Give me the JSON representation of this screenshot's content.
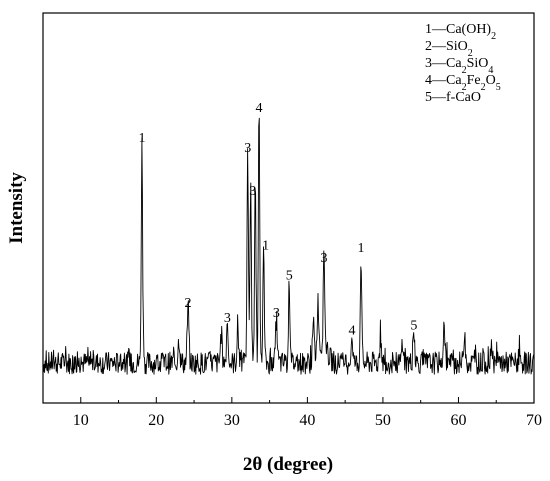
{
  "chart_data": {
    "type": "line",
    "xlabel": "2θ (degree)",
    "ylabel": "Intensity",
    "xlim": [
      5,
      70
    ],
    "ylim": [
      0,
      100
    ],
    "x_ticks": [
      "10",
      "20",
      "30",
      "40",
      "50",
      "60",
      "70"
    ],
    "x_tick_values": [
      10,
      20,
      30,
      40,
      50,
      60,
      70
    ],
    "grid": false,
    "legend_position": "top-right",
    "legend": [
      {
        "text": "1—Ca(OH)",
        "sub": "2",
        "tail": ""
      },
      {
        "text": "2—SiO",
        "sub": "2",
        "tail": ""
      },
      {
        "text": "3—Ca",
        "sub": "2",
        "tail": "SiO",
        "sub2": "4"
      },
      {
        "text": "4—Ca",
        "sub": "2",
        "tail": "Fe",
        "sub2": "2",
        "tail2": "O",
        "sub3": "5"
      },
      {
        "text": "5—f-CaO",
        "sub": "",
        "tail": ""
      }
    ],
    "peaks": [
      {
        "x": 18.1,
        "y": 88,
        "label": "1"
      },
      {
        "x": 24.2,
        "y": 22,
        "label": "2"
      },
      {
        "x": 29.4,
        "y": 16,
        "label": "3"
      },
      {
        "x": 32.1,
        "y": 84,
        "label": "3"
      },
      {
        "x": 32.5,
        "y": 70,
        "label": "3"
      },
      {
        "x": 33.6,
        "y": 100,
        "label": "4"
      },
      {
        "x": 34.2,
        "y": 45,
        "label": "1"
      },
      {
        "x": 35.9,
        "y": 18,
        "label": "3"
      },
      {
        "x": 37.6,
        "y": 33,
        "label": "5"
      },
      {
        "x": 42.2,
        "y": 40,
        "label": "3"
      },
      {
        "x": 45.9,
        "y": 11,
        "label": "4"
      },
      {
        "x": 47.1,
        "y": 44,
        "label": "1"
      },
      {
        "x": 54.1,
        "y": 13,
        "label": "5"
      }
    ]
  }
}
